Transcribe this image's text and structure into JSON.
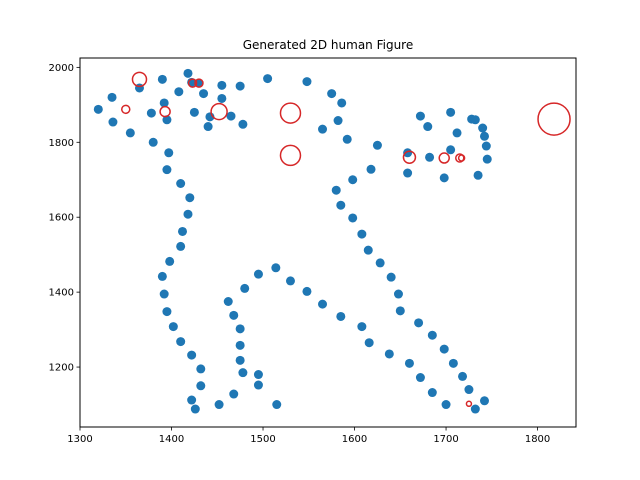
{
  "chart_data": {
    "type": "scatter",
    "title": "Generated 2D human Figure",
    "xlabel": "",
    "ylabel": "",
    "xlim": [
      1300,
      1842
    ],
    "ylim": [
      1040,
      2025
    ],
    "xticks": [
      1300,
      1400,
      1500,
      1600,
      1700,
      1800
    ],
    "yticks": [
      1200,
      1400,
      1600,
      1800,
      2000
    ],
    "grid": false,
    "colors": {
      "points": "#1f77b4",
      "circles": "#d62728",
      "axes": "#000000"
    },
    "series": [
      {
        "style": "filled-dots",
        "points": [
          [
            1320,
            1888
          ],
          [
            1335,
            1920
          ],
          [
            1336,
            1854
          ],
          [
            1355,
            1825
          ],
          [
            1365,
            1945
          ],
          [
            1378,
            1878
          ],
          [
            1380,
            1800
          ],
          [
            1390,
            1968
          ],
          [
            1392,
            1905
          ],
          [
            1395,
            1860
          ],
          [
            1397,
            1772
          ],
          [
            1395,
            1727
          ],
          [
            1410,
            1690
          ],
          [
            1408,
            1935
          ],
          [
            1418,
            1984
          ],
          [
            1420,
            1652
          ],
          [
            1418,
            1608
          ],
          [
            1422,
            1960
          ],
          [
            1425,
            1880
          ],
          [
            1430,
            1958
          ],
          [
            1435,
            1930
          ],
          [
            1440,
            1842
          ],
          [
            1442,
            1868
          ],
          [
            1455,
            1952
          ],
          [
            1455,
            1917
          ],
          [
            1465,
            1870
          ],
          [
            1475,
            1950
          ],
          [
            1478,
            1848
          ],
          [
            1412,
            1562
          ],
          [
            1410,
            1522
          ],
          [
            1398,
            1482
          ],
          [
            1390,
            1442
          ],
          [
            1392,
            1395
          ],
          [
            1395,
            1348
          ],
          [
            1402,
            1308
          ],
          [
            1410,
            1268
          ],
          [
            1422,
            1232
          ],
          [
            1432,
            1195
          ],
          [
            1432,
            1150
          ],
          [
            1422,
            1112
          ],
          [
            1426,
            1088
          ],
          [
            1452,
            1100
          ],
          [
            1468,
            1128
          ],
          [
            1478,
            1185
          ],
          [
            1475,
            1218
          ],
          [
            1475,
            1258
          ],
          [
            1475,
            1302
          ],
          [
            1468,
            1338
          ],
          [
            1462,
            1375
          ],
          [
            1480,
            1410
          ],
          [
            1495,
            1448
          ],
          [
            1495,
            1180
          ],
          [
            1495,
            1152
          ],
          [
            1515,
            1100
          ],
          [
            1514,
            1465
          ],
          [
            1530,
            1430
          ],
          [
            1505,
            1970
          ],
          [
            1548,
            1962
          ],
          [
            1565,
            1835
          ],
          [
            1575,
            1930
          ],
          [
            1582,
            1858
          ],
          [
            1586,
            1905
          ],
          [
            1592,
            1808
          ],
          [
            1548,
            1402
          ],
          [
            1565,
            1368
          ],
          [
            1585,
            1335
          ],
          [
            1608,
            1308
          ],
          [
            1616,
            1265
          ],
          [
            1638,
            1235
          ],
          [
            1660,
            1210
          ],
          [
            1672,
            1172
          ],
          [
            1685,
            1132
          ],
          [
            1700,
            1100
          ],
          [
            1580,
            1672
          ],
          [
            1585,
            1632
          ],
          [
            1598,
            1598
          ],
          [
            1608,
            1555
          ],
          [
            1615,
            1512
          ],
          [
            1628,
            1478
          ],
          [
            1640,
            1440
          ],
          [
            1648,
            1395
          ],
          [
            1650,
            1350
          ],
          [
            1670,
            1318
          ],
          [
            1685,
            1285
          ],
          [
            1698,
            1248
          ],
          [
            1708,
            1210
          ],
          [
            1718,
            1175
          ],
          [
            1725,
            1140
          ],
          [
            1732,
            1088
          ],
          [
            1742,
            1110
          ],
          [
            1598,
            1700
          ],
          [
            1618,
            1728
          ],
          [
            1625,
            1792
          ],
          [
            1658,
            1772
          ],
          [
            1658,
            1718
          ],
          [
            1672,
            1870
          ],
          [
            1680,
            1842
          ],
          [
            1682,
            1760
          ],
          [
            1698,
            1705
          ],
          [
            1705,
            1780
          ],
          [
            1705,
            1880
          ],
          [
            1712,
            1825
          ],
          [
            1728,
            1862
          ],
          [
            1732,
            1860
          ],
          [
            1735,
            1712
          ],
          [
            1740,
            1838
          ],
          [
            1742,
            1816
          ],
          [
            1744,
            1790
          ],
          [
            1745,
            1755
          ]
        ]
      },
      {
        "style": "hollow-circles",
        "points": [
          [
            1365,
            1968,
            7
          ],
          [
            1350,
            1888,
            4
          ],
          [
            1393,
            1882,
            5
          ],
          [
            1423,
            1958,
            4
          ],
          [
            1430,
            1958,
            4
          ],
          [
            1452,
            1882,
            8
          ],
          [
            1530,
            1878,
            10
          ],
          [
            1530,
            1765,
            10
          ],
          [
            1660,
            1760,
            6
          ],
          [
            1698,
            1758,
            5
          ],
          [
            1715,
            1758,
            4
          ],
          [
            1717,
            1758,
            3
          ],
          [
            1818,
            1862,
            16
          ],
          [
            1725,
            1102,
            2.5
          ]
        ]
      }
    ]
  }
}
